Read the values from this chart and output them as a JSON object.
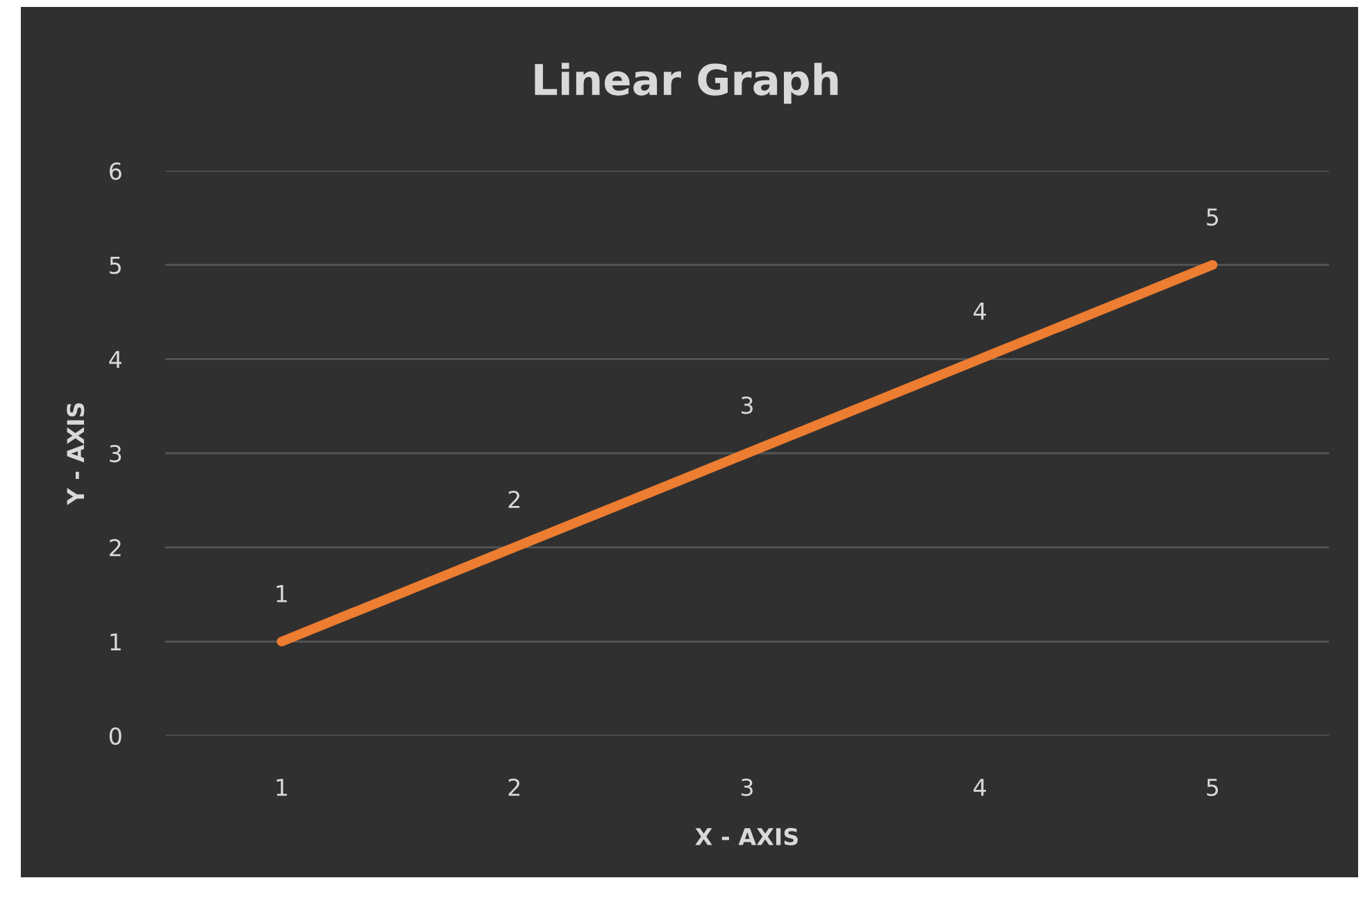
{
  "chart_data": {
    "type": "line",
    "title": "Linear Graph",
    "xlabel": "X - AXIS",
    "ylabel": "Y - AXIS",
    "categories": [
      "1",
      "2",
      "3",
      "4",
      "5"
    ],
    "series": [
      {
        "color": "#ed7d31",
        "values": [
          1,
          2,
          3,
          4,
          5
        ]
      }
    ],
    "ylim": [
      0,
      6
    ],
    "yticks": [
      0,
      1,
      2,
      3,
      4,
      5,
      6
    ],
    "grid": "y",
    "data_labels": true,
    "marker": "none",
    "line_style": "solid",
    "legend": false
  }
}
